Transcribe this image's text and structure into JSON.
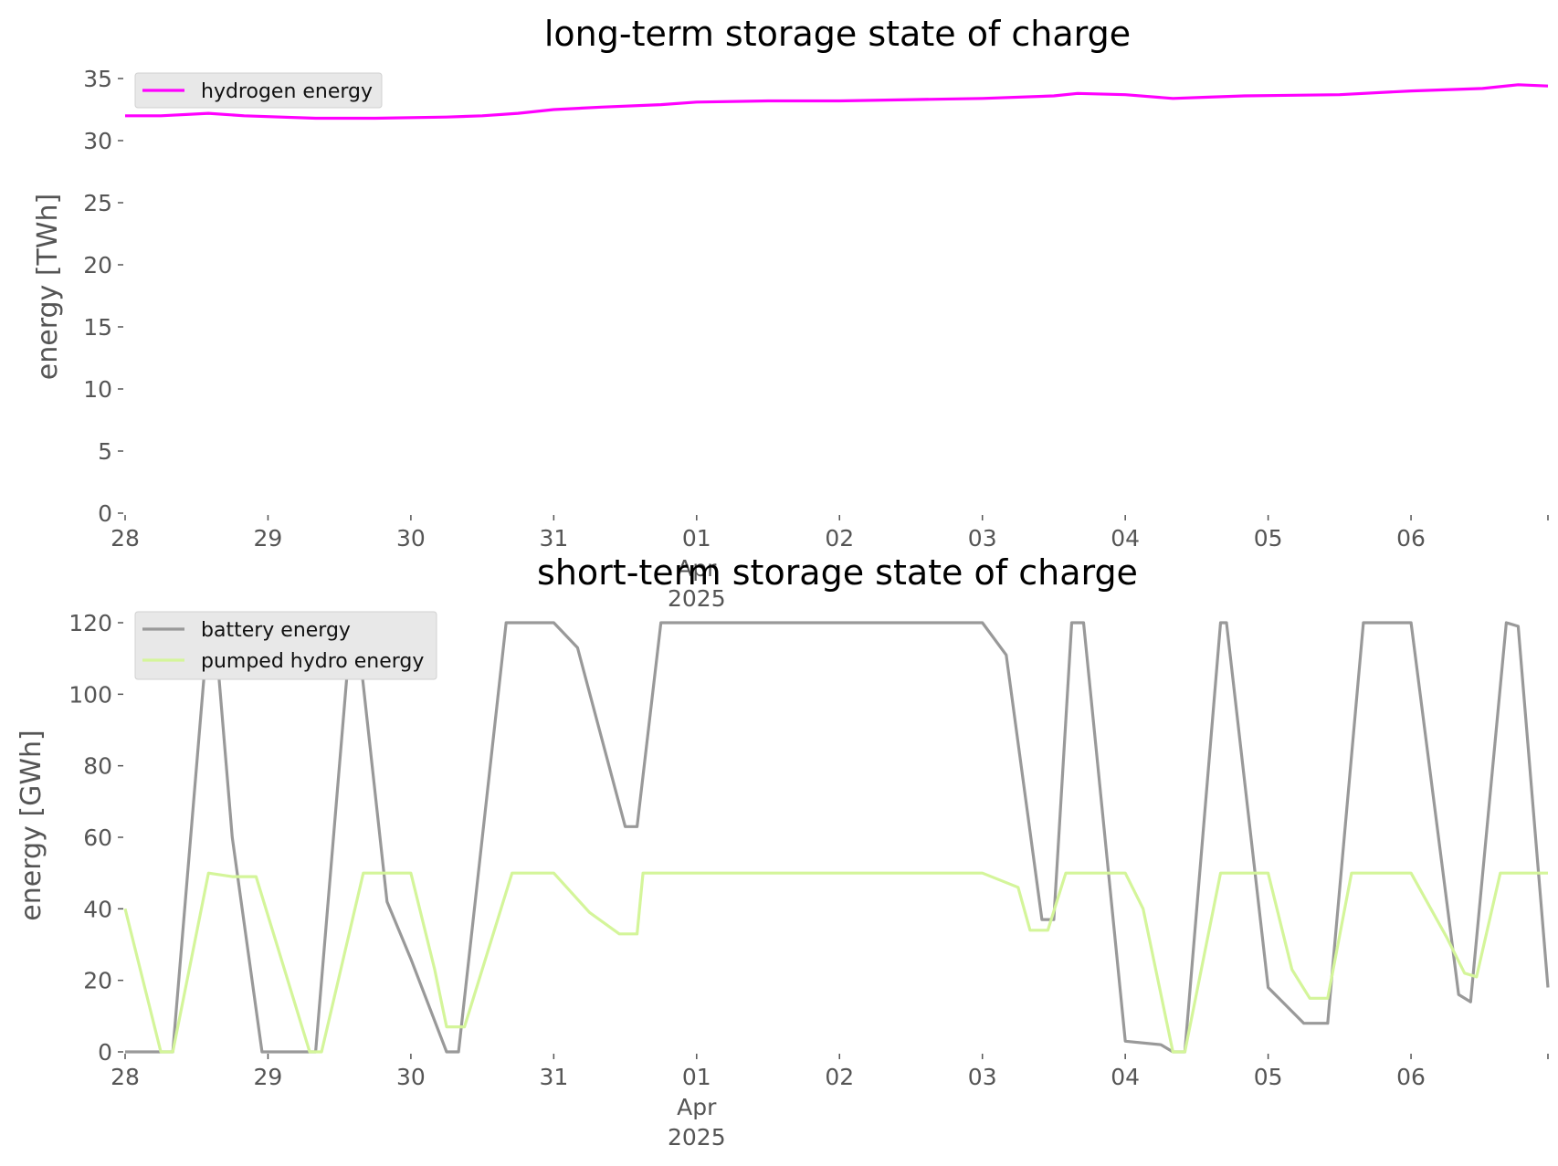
{
  "chart_data": [
    {
      "type": "line",
      "title": "long-term storage state of charge",
      "xlabel": "",
      "ylabel": "energy [TWh]",
      "ylim": [
        0,
        35
      ],
      "xlim": [
        "2025-03-28",
        "2025-04-06T23:00"
      ],
      "yticks": [
        0,
        5,
        10,
        15,
        20,
        25,
        30,
        35
      ],
      "xticks": [
        {
          "date": "2025-03-28",
          "label": "28",
          "sub": ""
        },
        {
          "date": "2025-03-29",
          "label": "29",
          "sub": ""
        },
        {
          "date": "2025-03-30",
          "label": "30",
          "sub": ""
        },
        {
          "date": "2025-03-31",
          "label": "31",
          "sub": ""
        },
        {
          "date": "2025-04-01",
          "label": "01",
          "sub": "Apr\n2025"
        },
        {
          "date": "2025-04-02",
          "label": "02",
          "sub": ""
        },
        {
          "date": "2025-04-03",
          "label": "03",
          "sub": ""
        },
        {
          "date": "2025-04-04",
          "label": "04",
          "sub": ""
        },
        {
          "date": "2025-04-05",
          "label": "05",
          "sub": ""
        },
        {
          "date": "2025-04-06",
          "label": "06",
          "sub": ""
        }
      ],
      "grid": false,
      "legend": "upper left",
      "series": [
        {
          "name": "hydrogen energy",
          "color": "#ff00ff",
          "points": [
            [
              "2025-03-28T00:00",
              32.0
            ],
            [
              "2025-03-28T06:00",
              32.0
            ],
            [
              "2025-03-28T14:00",
              32.2
            ],
            [
              "2025-03-28T20:00",
              32.0
            ],
            [
              "2025-03-29T08:00",
              31.8
            ],
            [
              "2025-03-29T18:00",
              31.8
            ],
            [
              "2025-03-30T06:00",
              31.9
            ],
            [
              "2025-03-30T12:00",
              32.0
            ],
            [
              "2025-03-30T18:00",
              32.2
            ],
            [
              "2025-03-31T00:00",
              32.5
            ],
            [
              "2025-03-31T08:00",
              32.7
            ],
            [
              "2025-03-31T18:00",
              32.9
            ],
            [
              "2025-04-01T00:00",
              33.1
            ],
            [
              "2025-04-01T12:00",
              33.2
            ],
            [
              "2025-04-02T00:00",
              33.2
            ],
            [
              "2025-04-02T12:00",
              33.3
            ],
            [
              "2025-04-03T00:00",
              33.4
            ],
            [
              "2025-04-03T12:00",
              33.6
            ],
            [
              "2025-04-03T16:00",
              33.8
            ],
            [
              "2025-04-04T00:00",
              33.7
            ],
            [
              "2025-04-04T08:00",
              33.4
            ],
            [
              "2025-04-04T14:00",
              33.5
            ],
            [
              "2025-04-04T20:00",
              33.6
            ],
            [
              "2025-04-05T12:00",
              33.7
            ],
            [
              "2025-04-06T00:00",
              34.0
            ],
            [
              "2025-04-06T12:00",
              34.2
            ],
            [
              "2025-04-06T18:00",
              34.5
            ],
            [
              "2025-04-06T23:00",
              34.4
            ]
          ]
        }
      ]
    },
    {
      "type": "line",
      "title": "short-term storage state of charge",
      "xlabel": "",
      "ylabel": "energy [GWh]",
      "ylim": [
        0,
        120
      ],
      "xlim": [
        "2025-03-28",
        "2025-04-06T23:00"
      ],
      "yticks": [
        0,
        20,
        40,
        60,
        80,
        100,
        120
      ],
      "xticks": [
        {
          "date": "2025-03-28",
          "label": "28",
          "sub": ""
        },
        {
          "date": "2025-03-29",
          "label": "29",
          "sub": ""
        },
        {
          "date": "2025-03-30",
          "label": "30",
          "sub": ""
        },
        {
          "date": "2025-03-31",
          "label": "31",
          "sub": ""
        },
        {
          "date": "2025-04-01",
          "label": "01",
          "sub": "Apr\n2025"
        },
        {
          "date": "2025-04-02",
          "label": "02",
          "sub": ""
        },
        {
          "date": "2025-04-03",
          "label": "03",
          "sub": ""
        },
        {
          "date": "2025-04-04",
          "label": "04",
          "sub": ""
        },
        {
          "date": "2025-04-05",
          "label": "05",
          "sub": ""
        },
        {
          "date": "2025-04-06",
          "label": "06",
          "sub": ""
        }
      ],
      "grid": false,
      "legend": "upper left",
      "series": [
        {
          "name": "battery energy",
          "color": "#999999",
          "points": [
            [
              "2025-03-28T00:00",
              0
            ],
            [
              "2025-03-28T08:00",
              0
            ],
            [
              "2025-03-28T14:00",
              120
            ],
            [
              "2025-03-28T15:00",
              120
            ],
            [
              "2025-03-28T18:00",
              60
            ],
            [
              "2025-03-28T23:00",
              0
            ],
            [
              "2025-03-29T08:00",
              0
            ],
            [
              "2025-03-29T14:00",
              120
            ],
            [
              "2025-03-29T15:00",
              118
            ],
            [
              "2025-03-29T20:00",
              42
            ],
            [
              "2025-03-30T00:00",
              26
            ],
            [
              "2025-03-30T06:00",
              0
            ],
            [
              "2025-03-30T08:00",
              0
            ],
            [
              "2025-03-30T16:00",
              120
            ],
            [
              "2025-03-31T00:00",
              120
            ],
            [
              "2025-03-31T04:00",
              113
            ],
            [
              "2025-03-31T12:00",
              63
            ],
            [
              "2025-03-31T14:00",
              63
            ],
            [
              "2025-03-31T18:00",
              120
            ],
            [
              "2025-04-01T00:00",
              120
            ],
            [
              "2025-04-02T00:00",
              120
            ],
            [
              "2025-04-03T00:00",
              120
            ],
            [
              "2025-04-03T04:00",
              111
            ],
            [
              "2025-04-03T10:00",
              37
            ],
            [
              "2025-04-03T12:00",
              37
            ],
            [
              "2025-04-03T15:00",
              120
            ],
            [
              "2025-04-03T17:00",
              120
            ],
            [
              "2025-04-04T00:00",
              3
            ],
            [
              "2025-04-04T06:00",
              2
            ],
            [
              "2025-04-04T08:00",
              0
            ],
            [
              "2025-04-04T10:00",
              0
            ],
            [
              "2025-04-04T16:00",
              120
            ],
            [
              "2025-04-04T17:00",
              120
            ],
            [
              "2025-04-05T00:00",
              18
            ],
            [
              "2025-04-05T06:00",
              8
            ],
            [
              "2025-04-05T10:00",
              8
            ],
            [
              "2025-04-05T16:00",
              120
            ],
            [
              "2025-04-06T00:00",
              120
            ],
            [
              "2025-04-06T08:00",
              16
            ],
            [
              "2025-04-06T10:00",
              14
            ],
            [
              "2025-04-06T16:00",
              120
            ],
            [
              "2025-04-06T18:00",
              119
            ],
            [
              "2025-04-06T23:00",
              18
            ]
          ]
        },
        {
          "name": "pumped hydro energy",
          "color": "#d4f59a",
          "points": [
            [
              "2025-03-28T00:00",
              40
            ],
            [
              "2025-03-28T06:00",
              0
            ],
            [
              "2025-03-28T08:00",
              0
            ],
            [
              "2025-03-28T14:00",
              50
            ],
            [
              "2025-03-28T18:00",
              49
            ],
            [
              "2025-03-28T22:00",
              49
            ],
            [
              "2025-03-29T07:00",
              0
            ],
            [
              "2025-03-29T09:00",
              0
            ],
            [
              "2025-03-29T16:00",
              50
            ],
            [
              "2025-03-30T00:00",
              50
            ],
            [
              "2025-03-30T04:00",
              23
            ],
            [
              "2025-03-30T06:00",
              7
            ],
            [
              "2025-03-30T09:00",
              7
            ],
            [
              "2025-03-30T17:00",
              50
            ],
            [
              "2025-03-31T00:00",
              50
            ],
            [
              "2025-03-31T06:00",
              39
            ],
            [
              "2025-03-31T11:00",
              33
            ],
            [
              "2025-03-31T14:00",
              33
            ],
            [
              "2025-03-31T15:00",
              50
            ],
            [
              "2025-04-01T00:00",
              50
            ],
            [
              "2025-04-02T00:00",
              50
            ],
            [
              "2025-04-03T00:00",
              50
            ],
            [
              "2025-04-03T06:00",
              46
            ],
            [
              "2025-04-03T08:00",
              34
            ],
            [
              "2025-04-03T11:00",
              34
            ],
            [
              "2025-04-03T14:00",
              50
            ],
            [
              "2025-04-04T00:00",
              50
            ],
            [
              "2025-04-04T03:00",
              40
            ],
            [
              "2025-04-04T08:00",
              0
            ],
            [
              "2025-04-04T10:00",
              0
            ],
            [
              "2025-04-04T16:00",
              50
            ],
            [
              "2025-04-05T00:00",
              50
            ],
            [
              "2025-04-05T04:00",
              23
            ],
            [
              "2025-04-05T07:00",
              15
            ],
            [
              "2025-04-05T10:00",
              15
            ],
            [
              "2025-04-05T14:00",
              50
            ],
            [
              "2025-04-06T00:00",
              50
            ],
            [
              "2025-04-06T06:00",
              32
            ],
            [
              "2025-04-06T09:00",
              22
            ],
            [
              "2025-04-06T11:00",
              21
            ],
            [
              "2025-04-06T15:00",
              50
            ],
            [
              "2025-04-06T23:00",
              50
            ]
          ]
        }
      ]
    }
  ]
}
